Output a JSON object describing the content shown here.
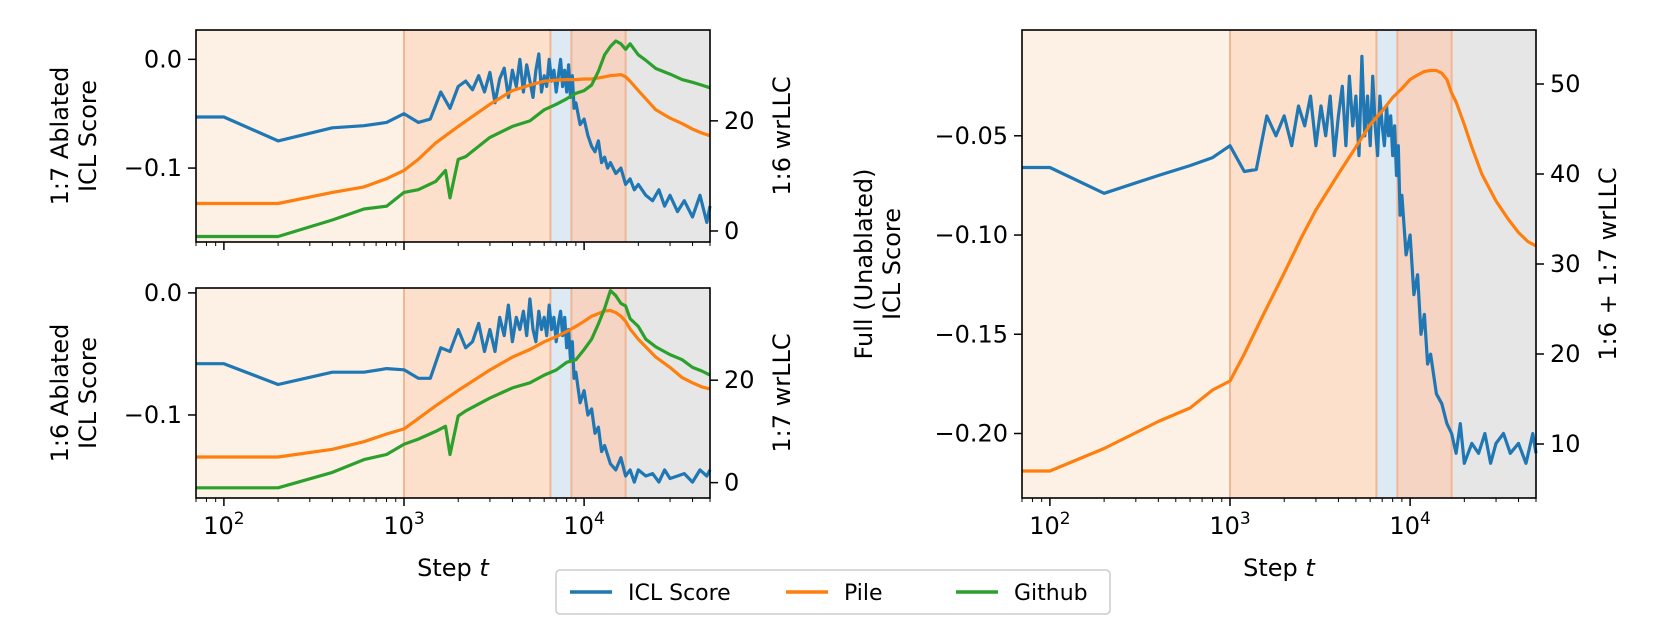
{
  "legend": {
    "entries": [
      {
        "label": "ICL Score",
        "color": "#1f77b4"
      },
      {
        "label": "Pile",
        "color": "#ff7f0e"
      },
      {
        "label": "Github",
        "color": "#2ca02c"
      }
    ],
    "placement": "bottom-center"
  },
  "stage_regions": {
    "boundaries": [
      70,
      1000,
      6500,
      8500,
      17000,
      50000
    ],
    "colors": [
      "#fdf1e6",
      "#fce0cc",
      "#dde9f3",
      "#f5d4c4",
      "#e6e6e6"
    ],
    "divider_color": "#f0b797"
  },
  "chart_data": [
    {
      "id": "top-left",
      "type": "line",
      "xscale": "log",
      "xlim": [
        70,
        50000
      ],
      "xlabel": "",
      "xticks": [],
      "ylabel_left": [
        "1:7 Ablated",
        "ICL Score"
      ],
      "ylabel_right": "1:6 wrLLC",
      "ylim_left": [
        -0.168,
        0.027
      ],
      "ylim_right": [
        -2,
        36.5
      ],
      "yticks_left": [
        {
          "v": 0.0,
          "label": "0.0"
        },
        {
          "v": -0.1,
          "label": "−0.1"
        }
      ],
      "yticks_right": [
        {
          "v": 20,
          "label": "20"
        },
        {
          "v": 0,
          "label": "0"
        }
      ],
      "series": [
        {
          "name": "ICL Score",
          "axis": "left",
          "color": "#1f77b4",
          "x": [
            70,
            100,
            200,
            400,
            600,
            800,
            1000,
            1200,
            1400,
            1600,
            1800,
            2000,
            2200,
            2400,
            2600,
            2800,
            3000,
            3200,
            3400,
            3600,
            3800,
            4000,
            4200,
            4400,
            4600,
            4800,
            5000,
            5200,
            5400,
            5600,
            5800,
            6000,
            6200,
            6400,
            6600,
            6800,
            7000,
            7200,
            7400,
            7600,
            7800,
            8000,
            8200,
            8400,
            8600,
            8800,
            9000,
            9500,
            10000,
            10500,
            11000,
            11500,
            12000,
            12500,
            13000,
            13500,
            14000,
            15000,
            16000,
            17000,
            18000,
            19000,
            20000,
            22000,
            24000,
            26000,
            28000,
            30000,
            33000,
            36000,
            40000,
            44000,
            48000,
            50000
          ],
          "y": [
            -0.053,
            -0.053,
            -0.075,
            -0.063,
            -0.061,
            -0.058,
            -0.05,
            -0.058,
            -0.055,
            -0.03,
            -0.045,
            -0.025,
            -0.02,
            -0.028,
            -0.015,
            -0.03,
            -0.012,
            -0.04,
            -0.018,
            -0.008,
            -0.035,
            -0.01,
            -0.025,
            0.0,
            -0.03,
            -0.005,
            -0.02,
            -0.035,
            -0.01,
            0.005,
            -0.03,
            -0.015,
            -0.025,
            0.0,
            -0.02,
            -0.01,
            -0.03,
            -0.015,
            0.0,
            -0.025,
            -0.01,
            -0.03,
            -0.005,
            -0.035,
            -0.015,
            -0.045,
            -0.04,
            -0.06,
            -0.055,
            -0.07,
            -0.08,
            -0.085,
            -0.075,
            -0.095,
            -0.09,
            -0.1,
            -0.095,
            -0.105,
            -0.1,
            -0.115,
            -0.11,
            -0.12,
            -0.115,
            -0.125,
            -0.13,
            -0.12,
            -0.135,
            -0.125,
            -0.14,
            -0.13,
            -0.145,
            -0.125,
            -0.15,
            -0.135
          ]
        },
        {
          "name": "Pile",
          "axis": "right",
          "color": "#ff7f0e",
          "x": [
            70,
            200,
            400,
            600,
            800,
            1000,
            1200,
            1500,
            2000,
            3000,
            4000,
            5000,
            6000,
            7000,
            8000,
            9000,
            10000,
            11000,
            12000,
            13000,
            14000,
            15000,
            16000,
            17000,
            18000,
            20000,
            22000,
            25000,
            30000,
            35000,
            40000,
            45000,
            50000
          ],
          "y": [
            5,
            5,
            7,
            8,
            9.5,
            11,
            13,
            16,
            19,
            23,
            25.5,
            26.5,
            27.2,
            27.4,
            27.5,
            27.5,
            27.6,
            27.6,
            27.8,
            28,
            28.2,
            28.3,
            28.4,
            28,
            27.2,
            25.5,
            24,
            22,
            20.5,
            19.5,
            18.5,
            17.8,
            17.3
          ]
        },
        {
          "name": "Github",
          "axis": "right",
          "color": "#2ca02c",
          "x": [
            70,
            200,
            400,
            600,
            800,
            1000,
            1200,
            1500,
            1700,
            1800,
            2000,
            2200,
            3000,
            4000,
            5000,
            6000,
            7000,
            8000,
            9000,
            10000,
            11000,
            12000,
            13000,
            14000,
            15000,
            16000,
            17000,
            18000,
            20000,
            22000,
            25000,
            30000,
            35000,
            40000,
            45000,
            50000
          ],
          "y": [
            -1,
            -1,
            2,
            4,
            4.5,
            7,
            7.5,
            9,
            11,
            6,
            13,
            13.5,
            17,
            19,
            20,
            22,
            23,
            24,
            25,
            25.5,
            26.5,
            29,
            32,
            33.5,
            34.5,
            34,
            33,
            34,
            32,
            31,
            29.5,
            28.5,
            27.5,
            27,
            26.5,
            26
          ]
        }
      ]
    },
    {
      "id": "bottom-left",
      "type": "line",
      "xscale": "log",
      "xlim": [
        70,
        50000
      ],
      "xlabel": "Step t",
      "xticks": [
        {
          "v": 100,
          "base": "10",
          "exp": "2"
        },
        {
          "v": 1000,
          "base": "10",
          "exp": "3"
        },
        {
          "v": 10000,
          "base": "10",
          "exp": "4"
        }
      ],
      "ylabel_left": [
        "1:6 Ablated",
        "ICL Score"
      ],
      "ylabel_right": "1:7 wrLLC",
      "ylim_left": [
        -0.168,
        0.004
      ],
      "ylim_right": [
        -3,
        38
      ],
      "yticks_left": [
        {
          "v": 0.0,
          "label": "0.0"
        },
        {
          "v": -0.1,
          "label": "−0.1"
        }
      ],
      "yticks_right": [
        {
          "v": 20,
          "label": "20"
        },
        {
          "v": 0,
          "label": "0"
        }
      ],
      "series": [
        {
          "name": "ICL Score",
          "axis": "left",
          "color": "#1f77b4",
          "x": [
            70,
            100,
            200,
            400,
            600,
            800,
            1000,
            1200,
            1400,
            1600,
            1800,
            2000,
            2200,
            2400,
            2600,
            2800,
            3000,
            3200,
            3400,
            3600,
            3800,
            4000,
            4200,
            4400,
            4600,
            4800,
            5000,
            5200,
            5400,
            5600,
            5800,
            6000,
            6200,
            6400,
            6600,
            6800,
            7000,
            7200,
            7400,
            7600,
            7800,
            8000,
            8200,
            8400,
            8600,
            8800,
            9000,
            9500,
            10000,
            10500,
            11000,
            11500,
            12000,
            12500,
            13000,
            14000,
            15000,
            16000,
            17000,
            18000,
            19000,
            20000,
            22000,
            24000,
            26000,
            28000,
            30000,
            33000,
            36000,
            40000,
            44000,
            48000,
            50000
          ],
          "y": [
            -0.058,
            -0.058,
            -0.075,
            -0.065,
            -0.065,
            -0.062,
            -0.063,
            -0.07,
            -0.07,
            -0.045,
            -0.048,
            -0.03,
            -0.045,
            -0.04,
            -0.025,
            -0.048,
            -0.03,
            -0.048,
            -0.02,
            -0.035,
            -0.01,
            -0.04,
            -0.02,
            -0.03,
            -0.015,
            -0.035,
            -0.005,
            -0.03,
            -0.04,
            -0.015,
            -0.03,
            -0.02,
            -0.035,
            -0.01,
            -0.03,
            -0.02,
            -0.04,
            -0.025,
            -0.015,
            -0.035,
            -0.02,
            -0.045,
            -0.03,
            -0.055,
            -0.04,
            -0.07,
            -0.065,
            -0.09,
            -0.08,
            -0.1,
            -0.095,
            -0.115,
            -0.11,
            -0.13,
            -0.125,
            -0.14,
            -0.145,
            -0.135,
            -0.15,
            -0.145,
            -0.155,
            -0.145,
            -0.15,
            -0.148,
            -0.155,
            -0.145,
            -0.152,
            -0.15,
            -0.148,
            -0.155,
            -0.145,
            -0.15,
            -0.145
          ]
        },
        {
          "name": "Pile",
          "axis": "right",
          "color": "#ff7f0e",
          "x": [
            70,
            200,
            400,
            600,
            800,
            1000,
            1200,
            1500,
            2000,
            3000,
            4000,
            5000,
            6000,
            7000,
            8000,
            9000,
            10000,
            11000,
            12000,
            13000,
            14000,
            15000,
            16000,
            17000,
            18000,
            20000,
            22000,
            25000,
            30000,
            35000,
            40000,
            45000,
            50000
          ],
          "y": [
            5,
            5,
            6.5,
            8,
            9.5,
            10.5,
            12.5,
            15,
            18,
            22,
            24.5,
            26,
            27.5,
            28.5,
            29.5,
            30.5,
            31.5,
            32.5,
            33,
            33.5,
            33.6,
            33.2,
            32.5,
            31.5,
            30,
            28,
            26.5,
            24.5,
            22.5,
            20.5,
            19.5,
            18.7,
            18.3
          ]
        },
        {
          "name": "Github",
          "axis": "right",
          "color": "#2ca02c",
          "x": [
            70,
            200,
            400,
            600,
            800,
            1000,
            1200,
            1500,
            1700,
            1800,
            2000,
            2200,
            3000,
            4000,
            5000,
            6000,
            7000,
            8000,
            9000,
            10000,
            11000,
            12000,
            13000,
            14000,
            15000,
            16000,
            17000,
            18000,
            20000,
            22000,
            25000,
            30000,
            35000,
            40000,
            45000,
            50000
          ],
          "y": [
            -1,
            -1,
            2,
            4.5,
            5.5,
            7.5,
            8.5,
            10,
            11,
            5.5,
            13,
            14,
            16.5,
            18.5,
            19.5,
            21,
            22,
            23.5,
            24,
            26,
            28,
            31,
            34,
            37.5,
            36.5,
            35,
            34.5,
            32,
            30.5,
            28,
            26.5,
            25,
            24,
            22.5,
            21.8,
            21
          ]
        }
      ]
    },
    {
      "id": "right",
      "type": "line",
      "xscale": "log",
      "xlim": [
        70,
        50000
      ],
      "xlabel": "Step t",
      "xticks": [
        {
          "v": 100,
          "base": "10",
          "exp": "2"
        },
        {
          "v": 1000,
          "base": "10",
          "exp": "3"
        },
        {
          "v": 10000,
          "base": "10",
          "exp": "4"
        }
      ],
      "ylabel_left": [
        "Full (Unablated)",
        "ICL Score"
      ],
      "ylabel_right": "1:6 + 1:7 wrLLC",
      "ylim_left": [
        -0.2325,
        0.0033
      ],
      "ylim_right": [
        4,
        56
      ],
      "yticks_left": [
        {
          "v": -0.05,
          "label": "−0.05"
        },
        {
          "v": -0.1,
          "label": "−0.10"
        },
        {
          "v": -0.15,
          "label": "−0.15"
        },
        {
          "v": -0.2,
          "label": "−0.20"
        }
      ],
      "yticks_right": [
        {
          "v": 50,
          "label": "50"
        },
        {
          "v": 40,
          "label": "40"
        },
        {
          "v": 30,
          "label": "30"
        },
        {
          "v": 20,
          "label": "20"
        },
        {
          "v": 10,
          "label": "10"
        }
      ],
      "series": [
        {
          "name": "ICL Score",
          "axis": "left",
          "color": "#1f77b4",
          "x": [
            70,
            100,
            200,
            400,
            600,
            800,
            1000,
            1200,
            1400,
            1600,
            1800,
            2000,
            2200,
            2400,
            2600,
            2800,
            3000,
            3200,
            3400,
            3600,
            3800,
            4000,
            4200,
            4400,
            4600,
            4800,
            5000,
            5200,
            5400,
            5600,
            5800,
            6000,
            6200,
            6400,
            6600,
            6800,
            7000,
            7200,
            7400,
            7600,
            7800,
            8000,
            8200,
            8400,
            8600,
            8800,
            9000,
            9500,
            10000,
            10500,
            11000,
            11500,
            12000,
            12500,
            13000,
            14000,
            15000,
            16000,
            17000,
            18000,
            19000,
            20000,
            22000,
            24000,
            26000,
            28000,
            30000,
            33000,
            36000,
            40000,
            44000,
            48000,
            50000
          ],
          "y": [
            -0.066,
            -0.066,
            -0.079,
            -0.07,
            -0.065,
            -0.061,
            -0.055,
            -0.068,
            -0.067,
            -0.04,
            -0.05,
            -0.04,
            -0.055,
            -0.035,
            -0.045,
            -0.03,
            -0.055,
            -0.035,
            -0.05,
            -0.03,
            -0.06,
            -0.04,
            -0.025,
            -0.055,
            -0.02,
            -0.045,
            -0.03,
            -0.06,
            -0.01,
            -0.05,
            -0.03,
            -0.055,
            -0.02,
            -0.045,
            -0.06,
            -0.03,
            -0.045,
            -0.055,
            -0.035,
            -0.05,
            -0.04,
            -0.06,
            -0.045,
            -0.07,
            -0.055,
            -0.09,
            -0.08,
            -0.11,
            -0.1,
            -0.13,
            -0.12,
            -0.15,
            -0.14,
            -0.165,
            -0.16,
            -0.18,
            -0.185,
            -0.195,
            -0.2,
            -0.21,
            -0.195,
            -0.215,
            -0.205,
            -0.21,
            -0.2,
            -0.215,
            -0.205,
            -0.2,
            -0.21,
            -0.205,
            -0.215,
            -0.2,
            -0.21
          ]
        },
        {
          "name": "Pile",
          "axis": "right",
          "color": "#ff7f0e",
          "x": [
            70,
            100,
            200,
            400,
            600,
            800,
            1000,
            1200,
            1500,
            2000,
            2500,
            3000,
            4000,
            5000,
            6000,
            7000,
            8000,
            9000,
            10000,
            11000,
            12000,
            13000,
            14000,
            15000,
            16000,
            17000,
            18000,
            20000,
            22000,
            25000,
            30000,
            35000,
            40000,
            45000,
            50000
          ],
          "y": [
            7,
            7,
            9.5,
            12.5,
            14,
            16,
            17,
            20,
            24,
            29,
            33,
            36,
            40,
            43,
            45.5,
            47,
            48.5,
            49.5,
            50.5,
            51,
            51.4,
            51.5,
            51.5,
            51.2,
            50.5,
            49,
            48,
            45.5,
            43,
            40,
            37,
            35,
            33.5,
            32.5,
            32
          ]
        }
      ]
    }
  ]
}
